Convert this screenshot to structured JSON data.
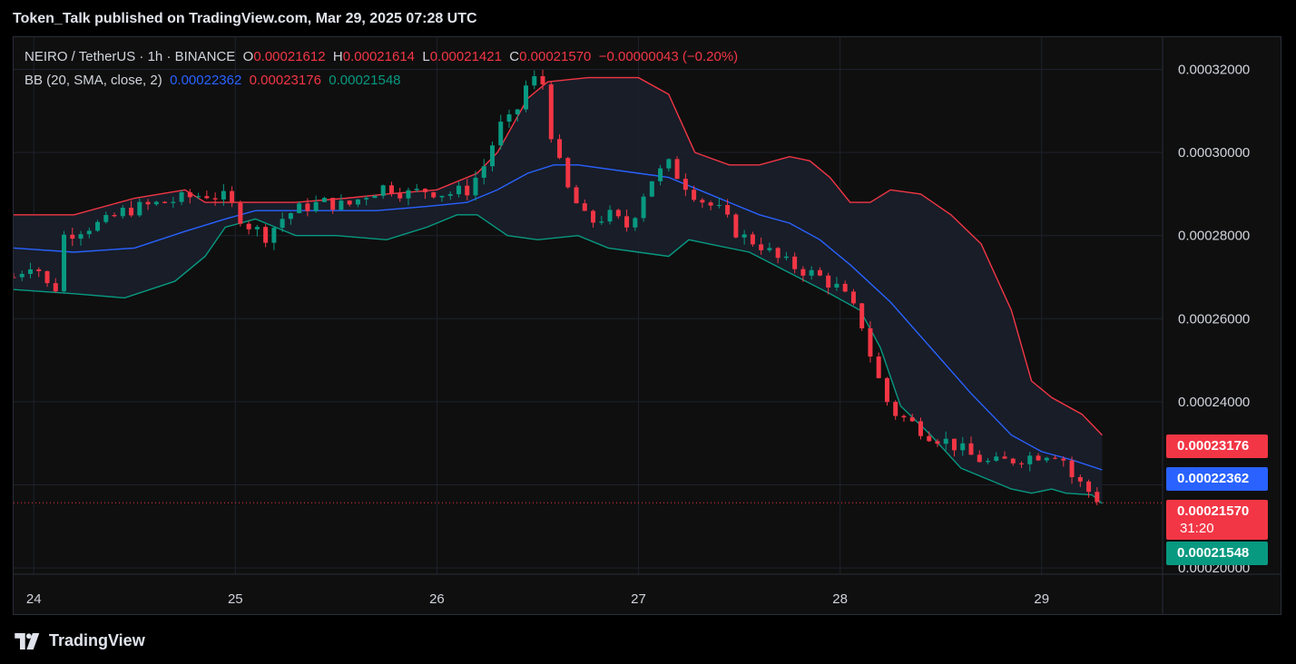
{
  "header": {
    "title": "Token_Talk published on TradingView.com, Mar 29, 2025 07:28 UTC"
  },
  "legend": {
    "symbol": "NEIRO / TetherUS · 1h · BINANCE",
    "o_label": "O",
    "o_value": "0.00021612",
    "h_label": "H",
    "h_value": "0.00021614",
    "l_label": "L",
    "l_value": "0.00021421",
    "c_label": "C",
    "c_value": "0.00021570",
    "change": "−0.00000043 (−0.20%)",
    "bb_label": "BB (20, SMA, close, 2)",
    "bb_basis": "0.00022362",
    "bb_upper": "0.00023176",
    "bb_lower": "0.00021548"
  },
  "price_tags": {
    "upper": "0.00023176",
    "basis": "0.00022362",
    "last": "0.00021570",
    "countdown": "31:20",
    "lower": "0.00021548"
  },
  "footer": {
    "brand": "TradingView"
  },
  "colors": {
    "up": "#089981",
    "down": "#f23645",
    "basis": "#2962ff",
    "upper": "#f23645",
    "lower": "#089981",
    "band_fill": "#1a1f2b"
  },
  "chart_data": {
    "type": "candlestick",
    "x_ticks": [
      "24",
      "25",
      "26",
      "27",
      "28",
      "29"
    ],
    "y_ticks": [
      "0.00032000",
      "0.00030000",
      "0.00028000",
      "0.00026000",
      "0.00024000",
      "0.00022000",
      "0.00020000"
    ],
    "ylim": [
      0.0002,
      0.00032
    ],
    "x_range_days": [
      23.9,
      29.6
    ],
    "last_price": 0.0002157,
    "close_series": [
      [
        23.9,
        0.00027
      ],
      [
        24.0,
        0.000274
      ],
      [
        24.1,
        0.000265
      ],
      [
        24.15,
        0.00028
      ],
      [
        24.25,
        0.000282
      ],
      [
        24.35,
        0.000283
      ],
      [
        24.45,
        0.000286
      ],
      [
        24.55,
        0.000287
      ],
      [
        24.65,
        0.000288
      ],
      [
        24.75,
        0.000289
      ],
      [
        24.85,
        0.00029
      ],
      [
        24.95,
        0.000289
      ],
      [
        25.05,
        0.000283
      ],
      [
        25.15,
        0.00028
      ],
      [
        25.25,
        0.000285
      ],
      [
        25.35,
        0.000287
      ],
      [
        25.45,
        0.000288
      ],
      [
        25.55,
        0.000287
      ],
      [
        25.65,
        0.00029
      ],
      [
        25.75,
        0.000292
      ],
      [
        25.85,
        0.00029
      ],
      [
        25.95,
        0.000291
      ],
      [
        26.05,
        0.00029
      ],
      [
        26.15,
        0.000291
      ],
      [
        26.25,
        0.000298
      ],
      [
        26.3,
        0.000306
      ],
      [
        26.38,
        0.000308
      ],
      [
        26.45,
        0.000317
      ],
      [
        26.52,
        0.000318
      ],
      [
        26.58,
        0.000301
      ],
      [
        26.65,
        0.000291
      ],
      [
        26.75,
        0.000283
      ],
      [
        26.85,
        0.000285
      ],
      [
        26.95,
        0.000282
      ],
      [
        27.05,
        0.000293
      ],
      [
        27.15,
        0.000297
      ],
      [
        27.22,
        0.000293
      ],
      [
        27.3,
        0.000289
      ],
      [
        27.4,
        0.000286
      ],
      [
        27.5,
        0.00028
      ],
      [
        27.6,
        0.000278
      ],
      [
        27.7,
        0.000274
      ],
      [
        27.8,
        0.000272
      ],
      [
        27.9,
        0.00027
      ],
      [
        28.0,
        0.000267
      ],
      [
        28.1,
        0.00026
      ],
      [
        28.17,
        0.000248
      ],
      [
        28.25,
        0.000238
      ],
      [
        28.35,
        0.000235
      ],
      [
        28.45,
        0.000232
      ],
      [
        28.55,
        0.00023
      ],
      [
        28.65,
        0.000227
      ],
      [
        28.75,
        0.000225
      ],
      [
        28.85,
        0.000226
      ],
      [
        28.95,
        0.000227
      ],
      [
        29.05,
        0.000228
      ],
      [
        29.1,
        0.000227
      ],
      [
        29.15,
        0.000222
      ],
      [
        29.22,
        0.000219
      ],
      [
        29.3,
        0.0002157
      ]
    ],
    "bb_upper_series": [
      [
        23.9,
        0.000285
      ],
      [
        24.2,
        0.000285
      ],
      [
        24.5,
        0.000289
      ],
      [
        24.75,
        0.000291
      ],
      [
        24.85,
        0.000288
      ],
      [
        25.0,
        0.000288
      ],
      [
        25.3,
        0.000288
      ],
      [
        25.55,
        0.000289
      ],
      [
        25.75,
        0.00029
      ],
      [
        26.0,
        0.000291
      ],
      [
        26.2,
        0.000295
      ],
      [
        26.3,
        0.0003
      ],
      [
        26.45,
        0.000313
      ],
      [
        26.55,
        0.000317
      ],
      [
        26.75,
        0.000318
      ],
      [
        27.0,
        0.000318
      ],
      [
        27.15,
        0.000314
      ],
      [
        27.28,
        0.0003
      ],
      [
        27.45,
        0.000297
      ],
      [
        27.6,
        0.000297
      ],
      [
        27.75,
        0.000299
      ],
      [
        27.85,
        0.000298
      ],
      [
        27.95,
        0.000294
      ],
      [
        28.05,
        0.000288
      ],
      [
        28.15,
        0.000288
      ],
      [
        28.25,
        0.000291
      ],
      [
        28.4,
        0.00029
      ],
      [
        28.55,
        0.000285
      ],
      [
        28.7,
        0.000278
      ],
      [
        28.85,
        0.000262
      ],
      [
        28.95,
        0.000245
      ],
      [
        29.05,
        0.000241
      ],
      [
        29.2,
        0.000237
      ],
      [
        29.3,
        0.000232
      ]
    ],
    "bb_basis_series": [
      [
        23.9,
        0.000277
      ],
      [
        24.2,
        0.000276
      ],
      [
        24.5,
        0.000277
      ],
      [
        24.75,
        0.000281
      ],
      [
        24.95,
        0.000284
      ],
      [
        25.1,
        0.000286
      ],
      [
        25.4,
        0.000286
      ],
      [
        25.7,
        0.000286
      ],
      [
        25.95,
        0.000287
      ],
      [
        26.15,
        0.000288
      ],
      [
        26.3,
        0.000291
      ],
      [
        26.45,
        0.000295
      ],
      [
        26.58,
        0.000297
      ],
      [
        26.7,
        0.000297
      ],
      [
        27.0,
        0.000295
      ],
      [
        27.15,
        0.000294
      ],
      [
        27.3,
        0.000291
      ],
      [
        27.45,
        0.000288
      ],
      [
        27.6,
        0.000285
      ],
      [
        27.75,
        0.000283
      ],
      [
        27.9,
        0.000279
      ],
      [
        28.05,
        0.000273
      ],
      [
        28.25,
        0.000264
      ],
      [
        28.45,
        0.000253
      ],
      [
        28.65,
        0.000242
      ],
      [
        28.85,
        0.000232
      ],
      [
        29.0,
        0.000228
      ],
      [
        29.15,
        0.000226
      ],
      [
        29.3,
        0.0002236
      ]
    ],
    "bb_lower_series": [
      [
        23.9,
        0.000267
      ],
      [
        24.2,
        0.000266
      ],
      [
        24.45,
        0.000265
      ],
      [
        24.7,
        0.000269
      ],
      [
        24.85,
        0.000275
      ],
      [
        24.95,
        0.000282
      ],
      [
        25.1,
        0.000284
      ],
      [
        25.3,
        0.00028
      ],
      [
        25.5,
        0.00028
      ],
      [
        25.75,
        0.000279
      ],
      [
        25.95,
        0.000282
      ],
      [
        26.1,
        0.000285
      ],
      [
        26.2,
        0.000285
      ],
      [
        26.35,
        0.00028
      ],
      [
        26.5,
        0.000279
      ],
      [
        26.7,
        0.00028
      ],
      [
        26.85,
        0.000277
      ],
      [
        27.0,
        0.000276
      ],
      [
        27.15,
        0.000275
      ],
      [
        27.25,
        0.000279
      ],
      [
        27.35,
        0.000278
      ],
      [
        27.55,
        0.000276
      ],
      [
        27.75,
        0.000271
      ],
      [
        27.95,
        0.000266
      ],
      [
        28.1,
        0.000262
      ],
      [
        28.2,
        0.000253
      ],
      [
        28.3,
        0.000239
      ],
      [
        28.45,
        0.000232
      ],
      [
        28.6,
        0.000224
      ],
      [
        28.75,
        0.000221
      ],
      [
        28.85,
        0.000219
      ],
      [
        28.95,
        0.000218
      ],
      [
        29.05,
        0.000219
      ],
      [
        29.12,
        0.000218
      ],
      [
        29.25,
        0.0002176
      ],
      [
        29.3,
        0.0002155
      ]
    ]
  }
}
